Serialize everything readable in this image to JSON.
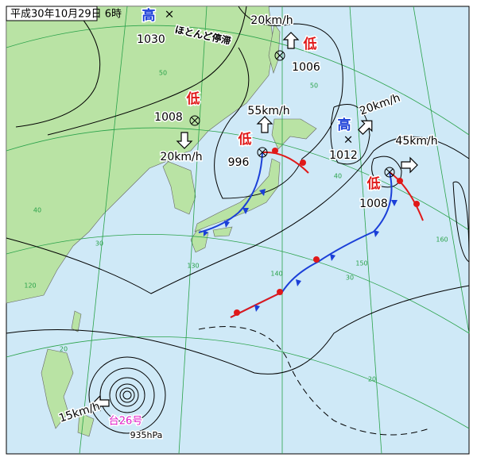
{
  "title": "平成30年10月29日 6時",
  "systems": [
    {
      "kind": "高",
      "pressure": 1030,
      "motion": "ほとんど停滞"
    },
    {
      "kind": "低",
      "pressure": 1008,
      "motion": "20km/h"
    },
    {
      "kind": "低",
      "pressure": 1006,
      "motion": "20km/h"
    },
    {
      "kind": "低",
      "pressure": 996,
      "motion": "55km/h"
    },
    {
      "kind": "高",
      "pressure": 1012,
      "motion": "20km/h"
    },
    {
      "kind": "低",
      "pressure": 1008,
      "motion": "45km/h"
    }
  ],
  "typhoon": {
    "name": "台26号",
    "pressure": "935hPa",
    "motion": "15km/h"
  },
  "grid_labels": [
    "50",
    "50",
    "40",
    "40",
    "30",
    "30",
    "20",
    "20",
    "120",
    "130",
    "140",
    "150",
    "160"
  ]
}
